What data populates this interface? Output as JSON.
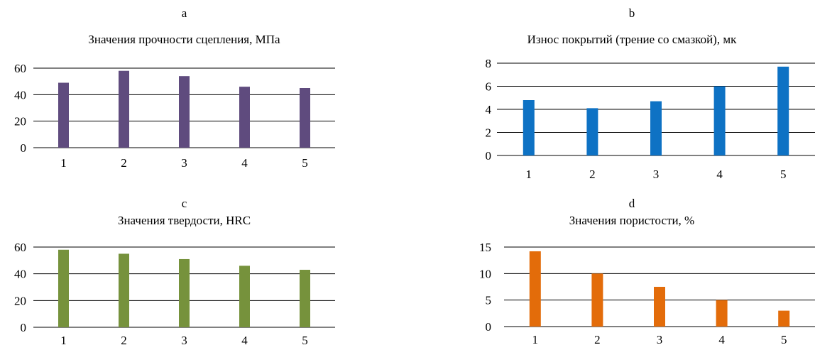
{
  "chart_data": [
    {
      "type": "bar",
      "panel_letter": "a",
      "title": "Значения прочности сцепления, МПа",
      "categories": [
        "1",
        "2",
        "3",
        "4",
        "5"
      ],
      "values": [
        49,
        58,
        54,
        46,
        45
      ],
      "y_ticks": [
        "0",
        "20",
        "40",
        "60"
      ],
      "ylim": [
        0,
        60
      ],
      "grid": true,
      "color": "#5f4b7e"
    },
    {
      "type": "bar",
      "panel_letter": "b",
      "title": "Износ покрытий (трение со смазкой), мк",
      "categories": [
        "1",
        "2",
        "3",
        "4",
        "5"
      ],
      "values": [
        4.8,
        4.1,
        4.7,
        6.0,
        7.7
      ],
      "y_ticks": [
        "0",
        "2",
        "4",
        "6",
        "8"
      ],
      "ylim": [
        0,
        8
      ],
      "grid": true,
      "color": "#0e72c4"
    },
    {
      "type": "bar",
      "panel_letter": "c",
      "title": "Значения твердости, HRC",
      "categories": [
        "1",
        "2",
        "3",
        "4",
        "5"
      ],
      "values": [
        58,
        55,
        51,
        46,
        43
      ],
      "y_ticks": [
        "0",
        "20",
        "40",
        "60"
      ],
      "ylim": [
        0,
        60
      ],
      "grid": true,
      "color": "#76923c"
    },
    {
      "type": "bar",
      "panel_letter": "d",
      "title": "Значения пористости, %",
      "categories": [
        "1",
        "2",
        "3",
        "4",
        "5"
      ],
      "values": [
        14.2,
        10.0,
        7.5,
        5.0,
        3.0
      ],
      "y_ticks": [
        "0",
        "5",
        "10",
        "15"
      ],
      "ylim": [
        0,
        15
      ],
      "grid": true,
      "color": "#e36c0a"
    }
  ]
}
